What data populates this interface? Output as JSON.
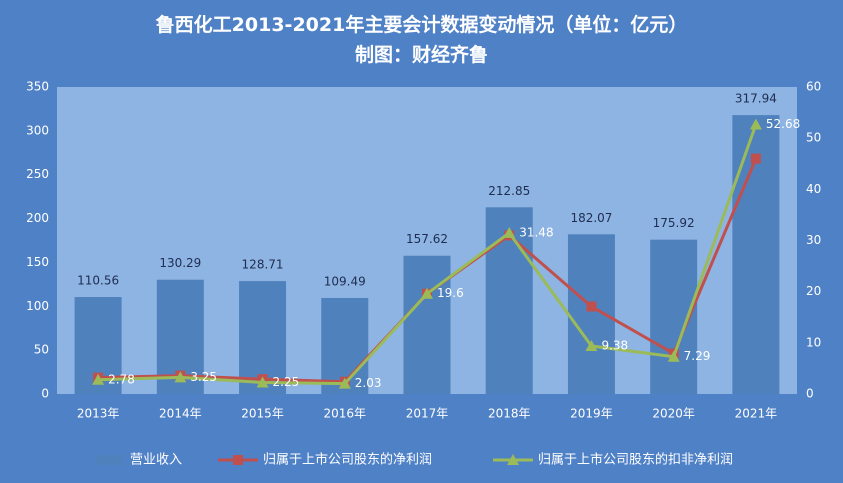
{
  "title": "鲁西化工2013-2021年主要会计数据变动情况（单位：亿元）",
  "subtitle": "制图：财经齐鲁",
  "colors": {
    "background": "#4f81c7",
    "plot_area": "#8eb4e3",
    "bar": "#4f81bd",
    "net_profit_line": "#c0504d",
    "adjusted_profit_line": "#9bbb59",
    "text": "#ffffff",
    "label_dark": "#1f2d50"
  },
  "chart_data": {
    "type": "bar",
    "categories": [
      "2013年",
      "2014年",
      "2015年",
      "2016年",
      "2017年",
      "2018年",
      "2019年",
      "2020年",
      "2021年"
    ],
    "series": [
      {
        "name": "营业收入",
        "type": "bar",
        "axis": "left",
        "values": [
          110.56,
          130.29,
          128.71,
          109.49,
          157.62,
          212.85,
          182.07,
          175.92,
          317.94
        ],
        "labels": [
          "110.56",
          "130.29",
          "128.71",
          "109.49",
          "157.62",
          "212.85",
          "182.07",
          "175.92",
          "317.94"
        ]
      },
      {
        "name": "归属于上市公司股东的净利润",
        "type": "line",
        "marker": "square",
        "axis": "right",
        "values": [
          3.2,
          3.6,
          2.9,
          2.4,
          19.6,
          31.0,
          17.1,
          7.9,
          46.0
        ]
      },
      {
        "name": "归属于上市公司股东的扣非净利润",
        "type": "line",
        "marker": "triangle",
        "axis": "right",
        "values": [
          2.78,
          3.25,
          2.25,
          2.03,
          19.6,
          31.48,
          9.38,
          7.29,
          52.68
        ],
        "labels": [
          "2.78",
          "3.25",
          "2.25",
          "2.03",
          "19.6",
          "31.48",
          "9.38",
          "7.29",
          "52.68"
        ]
      }
    ],
    "y_left": {
      "min": 0,
      "max": 350,
      "ticks": [
        "0",
        "50",
        "100",
        "150",
        "200",
        "250",
        "300",
        "350"
      ]
    },
    "y_right": {
      "min": 0,
      "max": 60,
      "ticks": [
        "0",
        "10",
        "20",
        "30",
        "40",
        "50",
        "60"
      ]
    },
    "grid": false,
    "legend_position": "bottom"
  }
}
